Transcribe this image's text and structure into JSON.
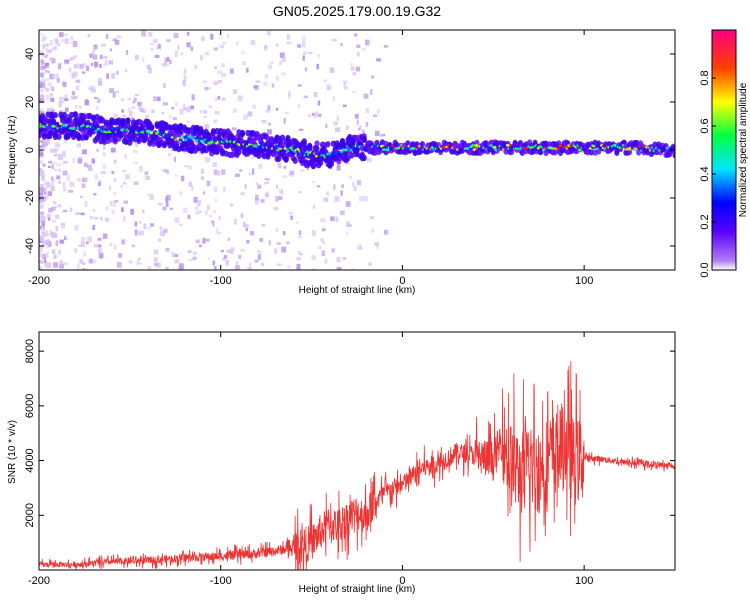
{
  "title": "GN05.2025.179.00.19.G32",
  "chart_data": [
    {
      "type": "heatmap",
      "xlabel": "Height of straight line (km)",
      "ylabel": "Frequency (Hz)",
      "xlim": [
        -200,
        150
      ],
      "ylim": [
        -50,
        50
      ],
      "xticks": [
        -200,
        -100,
        0,
        100
      ],
      "yticks": [
        -40,
        -20,
        0,
        20,
        40
      ],
      "colorbar": {
        "label": "Normalized spectral amplitude",
        "range": [
          0,
          1
        ],
        "ticks": [
          "0.0",
          "0.2",
          "0.4",
          "0.6",
          "0.8"
        ],
        "colormap": [
          "#ffffff",
          "#8a2be2",
          "#0000ff",
          "#00ffff",
          "#00ff00",
          "#ffff00",
          "#ff0000",
          "#ff0080"
        ]
      },
      "ridge_x": [
        -200,
        -180,
        -160,
        -140,
        -120,
        -100,
        -80,
        -60,
        -50,
        -40,
        -30,
        -20,
        0,
        20,
        40,
        60,
        80,
        100,
        120,
        150
      ],
      "ridge_y": [
        10,
        10,
        8,
        7,
        5,
        3,
        2,
        0,
        -2,
        -2,
        1,
        1,
        1,
        1,
        1,
        1,
        1,
        1,
        1,
        0
      ]
    },
    {
      "type": "line",
      "xlabel": "Height of straight line (km)",
      "ylabel": "SNR (10 * v/v)",
      "xlim": [
        -200,
        150
      ],
      "ylim": [
        0,
        8700
      ],
      "xticks": [
        -200,
        -100,
        0,
        100
      ],
      "yticks": [
        2000,
        4000,
        6000,
        8000
      ],
      "color": "#ee3333",
      "series": [
        {
          "x": [
            -200,
            -180,
            -160,
            -140,
            -120,
            -100,
            -80,
            -70,
            -60,
            -50,
            -45,
            -40,
            -35,
            -30,
            -25,
            -20,
            -15,
            -10,
            -5,
            0,
            10,
            20,
            30,
            40,
            50,
            55,
            60,
            65,
            70,
            75,
            80,
            85,
            90,
            95,
            100,
            110,
            120,
            130,
            140,
            150
          ],
          "y": [
            200,
            200,
            300,
            350,
            450,
            500,
            600,
            700,
            800,
            1000,
            1400,
            1700,
            1600,
            1900,
            2100,
            2000,
            2500,
            2800,
            3000,
            3100,
            3700,
            3900,
            4300,
            4200,
            4000,
            4800,
            3800,
            3500,
            3800,
            3600,
            4100,
            4300,
            4500,
            3900,
            4100,
            4050,
            3950,
            3900,
            3850,
            3800
          ]
        }
      ]
    }
  ]
}
